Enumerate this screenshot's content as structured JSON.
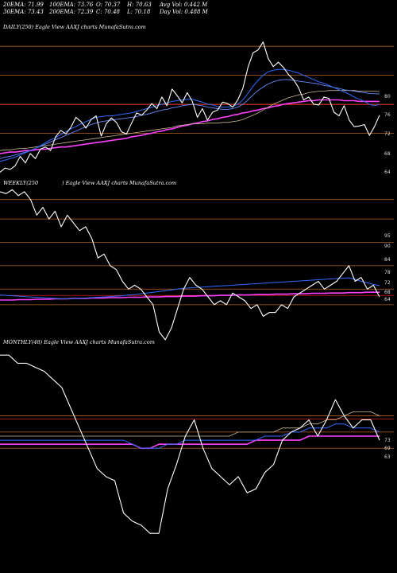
{
  "header": {
    "ema20": "20EMA: 71.99",
    "ema100": "100EMA: 73.76",
    "open": "O: 70.37",
    "high": "H: 70.63",
    "avg_vol": "Avg Vol: 0.442  M",
    "ema30": "30EMA: 73.43",
    "ema200": "200EMA: 72.39",
    "close": "C: 70.48",
    "low": "L: 70.18",
    "day_vol": "Day Vol: 0.488  M"
  },
  "panels": [
    {
      "label": "DAILY(250) Eagle  View  AAXJ charts MunafaSutra.com",
      "ticks": [
        "80",
        "76",
        "72",
        "68",
        "64"
      ],
      "price_line_values": [
        80,
        76,
        72,
        68
      ]
    },
    {
      "label_left": "WEEKLY(250",
      "label_right": ") Eagle  View  AAXJ charts MunafaSutra.com",
      "ticks": [
        "95",
        "90",
        "84",
        "78",
        "72",
        "68",
        "64"
      ],
      "price_line_values": [
        95,
        90,
        84,
        78,
        72,
        68
      ]
    },
    {
      "label": "MONTHLY(48) Eagle  View  AAXJ charts MunafaSutra.com",
      "ticks": [
        "73",
        "69",
        "63"
      ],
      "price_line_values": [
        73,
        69,
        65
      ]
    }
  ],
  "colors": {
    "background": "#000000",
    "price": "#ffffff",
    "price_lines": "#b8601c",
    "ema20": "#2f6bff",
    "ema30": "#6a8cff",
    "ema100": "#c8b890",
    "ema200": "#ff40ff",
    "red_band": "#ff2020"
  },
  "chart_data": [
    {
      "type": "line",
      "title": "DAILY(250) Eagle  View  AAXJ charts MunafaSutra.com",
      "ylim": [
        62,
        82
      ],
      "series": [
        {
          "values": [
            62.6,
            63.2,
            63.0,
            63.5,
            64.8,
            63.9,
            65.2,
            64.5,
            65.8,
            66.1,
            65.6,
            67.5,
            68.4,
            67.9,
            68.8,
            70.2,
            69.6,
            68.7,
            69.9,
            70.4,
            67.6,
            69.3,
            70.1,
            69.5,
            68.2,
            67.9,
            69.4,
            70.8,
            70.5,
            71.2,
            72.1,
            71.4,
            73.0,
            71.8,
            74.1,
            73.2,
            72.2,
            73.6,
            72.4,
            70.2,
            71.4,
            69.8,
            70.9,
            71.2,
            72.3,
            72.1,
            71.6,
            72.6,
            74.2,
            77.1,
            79.1,
            79.5,
            80.6,
            78.3,
            77.2,
            77.8,
            77.1,
            76.1,
            75.4,
            74.3,
            72.6,
            73.0,
            72.0,
            71.9,
            73.0,
            72.8,
            70.9,
            70.4,
            71.8,
            69.8,
            68.9,
            69.0,
            69.2,
            67.7,
            68.9,
            70.5
          ]
        },
        {
          "values": [
            64.1,
            64.3,
            64.5,
            64.7,
            65.0,
            65.3,
            65.6,
            65.9,
            66.3,
            66.7,
            67.1,
            67.4,
            67.8,
            68.2,
            68.6,
            68.9,
            69.3,
            69.6,
            69.9,
            70.2,
            70.3,
            70.4,
            70.4,
            70.5,
            70.6,
            70.7,
            70.8,
            71.0,
            71.2,
            71.4,
            71.6,
            71.8,
            72.0,
            72.2,
            72.4,
            72.5,
            72.6,
            72.7,
            72.7,
            72.5,
            72.3,
            72.0,
            71.9,
            71.7,
            71.6,
            71.6,
            71.7,
            72.0,
            72.6,
            73.5,
            74.5,
            75.3,
            76.0,
            76.5,
            76.7,
            76.8,
            76.8,
            76.7,
            76.5,
            76.3,
            76.0,
            75.7,
            75.4,
            75.1,
            74.9,
            74.6,
            74.3,
            74.0,
            73.7,
            73.4,
            73.0,
            72.7,
            72.4,
            72.0,
            71.8,
            71.99
          ]
        },
        {
          "values": [
            64.5,
            64.7,
            64.8,
            65.0,
            65.2,
            65.4,
            65.6,
            65.9,
            66.2,
            66.5,
            66.8,
            67.1,
            67.4,
            67.7,
            68.0,
            68.3,
            68.6,
            68.9,
            69.2,
            69.4,
            69.6,
            69.7,
            69.8,
            69.9,
            70.0,
            70.1,
            70.2,
            70.3,
            70.5,
            70.6,
            70.8,
            71.0,
            71.2,
            71.3,
            71.5,
            71.6,
            71.8,
            71.9,
            72.0,
            71.9,
            71.8,
            71.6,
            71.5,
            71.4,
            71.3,
            71.3,
            71.4,
            71.6,
            72.0,
            72.6,
            73.3,
            73.9,
            74.4,
            74.8,
            75.1,
            75.3,
            75.4,
            75.4,
            75.3,
            75.2,
            75.1,
            75.0,
            74.9,
            74.8,
            74.6,
            74.5,
            74.3,
            74.2,
            74.0,
            73.9,
            73.8,
            73.7,
            73.6,
            73.5,
            73.45,
            73.43
          ]
        },
        {
          "values": [
            65.6,
            65.7,
            65.7,
            65.8,
            65.9,
            65.9,
            66.0,
            66.1,
            66.2,
            66.3,
            66.4,
            66.5,
            66.6,
            66.7,
            66.8,
            66.9,
            67.0,
            67.1,
            67.2,
            67.3,
            67.4,
            67.5,
            67.6,
            67.7,
            67.8,
            67.9,
            68.0,
            68.1,
            68.2,
            68.3,
            68.4,
            68.5,
            68.6,
            68.7,
            68.8,
            69.0,
            69.1,
            69.2,
            69.3,
            69.3,
            69.3,
            69.4,
            69.4,
            69.4,
            69.5,
            69.5,
            69.6,
            69.7,
            69.9,
            70.2,
            70.5,
            70.8,
            71.2,
            71.6,
            72.0,
            72.3,
            72.6,
            72.9,
            73.1,
            73.3,
            73.4,
            73.6,
            73.7,
            73.8,
            73.8,
            73.9,
            73.9,
            73.9,
            73.9,
            73.9,
            73.9,
            73.8,
            73.8,
            73.8,
            73.8,
            73.76
          ]
        },
        {
          "values": [
            65.2,
            65.3,
            65.4,
            65.4,
            65.5,
            65.6,
            65.6,
            65.7,
            65.8,
            65.8,
            65.9,
            66.0,
            66.1,
            66.1,
            66.2,
            66.3,
            66.4,
            66.5,
            66.6,
            66.7,
            66.8,
            66.9,
            67.0,
            67.1,
            67.2,
            67.3,
            67.5,
            67.6,
            67.7,
            67.9,
            68.0,
            68.2,
            68.3,
            68.5,
            68.6,
            68.8,
            69.0,
            69.1,
            69.3,
            69.4,
            69.6,
            69.7,
            69.9,
            70.0,
            70.2,
            70.3,
            70.5,
            70.6,
            70.8,
            70.9,
            71.1,
            71.2,
            71.4,
            71.5,
            71.7,
            71.8,
            72.0,
            72.1,
            72.2,
            72.3,
            72.4,
            72.5,
            72.5,
            72.6,
            72.6,
            72.6,
            72.6,
            72.6,
            72.5,
            72.5,
            72.5,
            72.4,
            72.4,
            72.4,
            72.4,
            72.39
          ]
        }
      ]
    },
    {
      "type": "line",
      "title": "WEEKLY(250) Eagle  View  AAXJ charts MunafaSutra.com",
      "ylim": [
        60,
        98
      ],
      "series": [
        {
          "values": [
            97,
            96.5,
            97.5,
            96,
            97,
            95,
            91,
            93,
            90,
            92,
            88,
            91,
            89,
            87,
            88,
            85,
            80,
            81,
            78,
            77,
            74,
            72,
            73,
            72,
            70,
            68,
            61,
            59,
            62,
            67,
            72,
            75,
            73,
            72,
            70,
            68,
            69,
            68,
            71,
            70,
            69,
            67,
            68,
            65,
            66,
            66,
            68,
            67,
            70,
            71,
            72,
            73,
            74,
            72,
            73,
            74,
            76,
            78,
            74,
            75,
            72,
            73,
            70
          ]
        },
        {
          "values": [
            70.5,
            70.4,
            70.3,
            70.2,
            70.1,
            70.0,
            69.9,
            69.8,
            69.7,
            69.6,
            69.5,
            69.5,
            69.6,
            69.6,
            69.7,
            69.8,
            69.9,
            70.0,
            70.1,
            70.2,
            70.3,
            70.5,
            70.6,
            70.8,
            71.0,
            71.2,
            71.4,
            71.6,
            71.8,
            72.0,
            72.2,
            72.3,
            72.4,
            72.5,
            72.6,
            72.7,
            72.8,
            72.9,
            73.0,
            73.1,
            73.2,
            73.3,
            73.4,
            73.5,
            73.6,
            73.7,
            73.8,
            73.9,
            74.0,
            74.1,
            74.2,
            74.3,
            74.4,
            74.5,
            74.6,
            74.7,
            74.8,
            74.9,
            74.5,
            74.0,
            73.6,
            73.2,
            72.9
          ]
        },
        {
          "values": [
            69.2,
            69.2,
            69.2,
            69.3,
            69.3,
            69.3,
            69.4,
            69.4,
            69.4,
            69.5,
            69.5,
            69.5,
            69.6,
            69.6,
            69.6,
            69.7,
            69.7,
            69.7,
            69.8,
            69.8,
            69.8,
            69.9,
            69.9,
            69.9,
            70.0,
            70.0,
            70.0,
            70.1,
            70.1,
            70.1,
            70.2,
            70.2,
            70.2,
            70.3,
            70.3,
            70.3,
            70.4,
            70.4,
            70.4,
            70.5,
            70.5,
            70.5,
            70.6,
            70.6,
            70.6,
            70.7,
            70.7,
            70.7,
            70.8,
            70.8,
            70.8,
            70.9,
            70.9,
            70.9,
            71.0,
            71.0,
            71.0,
            71.1,
            71.1,
            71.1,
            71.2,
            71.2,
            71.2
          ]
        }
      ]
    },
    {
      "type": "line",
      "title": "MONTHLY(48) Eagle  View  AAXJ charts MunafaSutra.com",
      "ylim": [
        35,
        90
      ],
      "series": [
        {
          "values": [
            88,
            88,
            86,
            86,
            85,
            84,
            82,
            80,
            75,
            70,
            65,
            60,
            58,
            57,
            49,
            47,
            46,
            44,
            44,
            55,
            61,
            68,
            72,
            65,
            60,
            58,
            56,
            58,
            54,
            55,
            59,
            61,
            67,
            69,
            70,
            72,
            68,
            72,
            77,
            73,
            70,
            72,
            72,
            67
          ]
        },
        {
          "values": [
            67,
            67,
            67,
            67,
            67,
            67,
            67,
            67,
            67,
            67,
            67,
            67,
            67,
            67,
            67,
            66,
            65,
            65,
            65,
            66,
            66,
            67,
            67,
            67,
            67,
            67,
            67,
            67,
            67,
            67,
            68,
            68,
            68,
            69,
            69,
            70,
            70,
            70,
            71,
            71,
            70,
            70,
            70,
            69
          ]
        },
        {
          "values": [
            66,
            66,
            66,
            66,
            66,
            66,
            66,
            66,
            66,
            66,
            66,
            66,
            66,
            66,
            66,
            66,
            65,
            65,
            66,
            66,
            66,
            66,
            66,
            66,
            66,
            66,
            66,
            66,
            66,
            67,
            67,
            67,
            67,
            67,
            67,
            68,
            68,
            68,
            68,
            68,
            68,
            68,
            68,
            68
          ]
        },
        {
          "values": [
            68,
            68,
            68,
            68,
            68,
            68,
            68,
            68,
            68,
            68,
            68,
            68,
            68,
            68,
            68,
            68,
            68,
            68,
            68,
            68,
            68,
            68,
            68,
            68,
            68,
            68,
            68,
            69,
            69,
            69,
            69,
            69,
            70,
            70,
            70,
            71,
            71,
            72,
            72,
            73,
            74,
            74,
            74,
            73
          ]
        }
      ]
    }
  ]
}
